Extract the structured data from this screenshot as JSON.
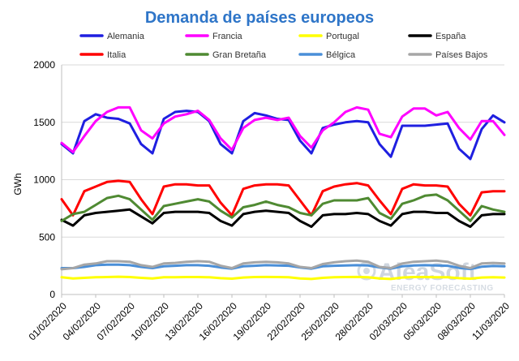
{
  "chart_data": {
    "type": "line",
    "title": "Demanda de países europeos",
    "xlabel": "",
    "ylabel": "GWh",
    "ylim": [
      0,
      2000
    ],
    "yticks": [
      0,
      500,
      1000,
      1500,
      2000
    ],
    "grid": "horizontal",
    "legend_position": "top",
    "x": [
      "01/02/2020",
      "02/02/2020",
      "03/02/2020",
      "04/02/2020",
      "05/02/2020",
      "06/02/2020",
      "07/02/2020",
      "08/02/2020",
      "09/02/2020",
      "10/02/2020",
      "11/02/2020",
      "12/02/2020",
      "13/02/2020",
      "14/02/2020",
      "15/02/2020",
      "16/02/2020",
      "17/02/2020",
      "18/02/2020",
      "19/02/2020",
      "20/02/2020",
      "21/02/2020",
      "22/02/2020",
      "23/02/2020",
      "24/02/2020",
      "25/02/2020",
      "26/02/2020",
      "27/02/2020",
      "28/02/2020",
      "29/02/2020",
      "01/03/2020",
      "02/03/2020",
      "03/03/2020",
      "04/03/2020",
      "05/03/2020",
      "06/03/2020",
      "07/03/2020",
      "08/03/2020",
      "09/03/2020",
      "10/03/2020",
      "11/03/2020"
    ],
    "xtick_labels": [
      "01/02/2020",
      "04/02/2020",
      "07/02/2020",
      "10/02/2020",
      "13/02/2020",
      "16/02/2020",
      "19/02/2020",
      "22/02/2020",
      "25/02/2020",
      "28/02/2020",
      "02/03/2020",
      "05/03/2020",
      "08/03/2020",
      "11/03/2020"
    ],
    "series": [
      {
        "name": "Alemania",
        "color": "#1f1fe0",
        "values": [
          1310,
          1230,
          1510,
          1570,
          1540,
          1530,
          1490,
          1310,
          1230,
          1530,
          1590,
          1600,
          1590,
          1510,
          1310,
          1230,
          1510,
          1580,
          1560,
          1530,
          1520,
          1340,
          1230,
          1450,
          1480,
          1500,
          1510,
          1500,
          1310,
          1200,
          1470,
          1470,
          1470,
          1480,
          1490,
          1270,
          1180,
          1440,
          1560,
          1500
        ]
      },
      {
        "name": "Francia",
        "color": "#ff00ff",
        "values": [
          1320,
          1240,
          1380,
          1510,
          1590,
          1630,
          1630,
          1430,
          1360,
          1490,
          1550,
          1570,
          1600,
          1520,
          1360,
          1260,
          1450,
          1520,
          1540,
          1520,
          1540,
          1380,
          1280,
          1430,
          1500,
          1590,
          1630,
          1610,
          1400,
          1370,
          1550,
          1620,
          1620,
          1560,
          1590,
          1450,
          1350,
          1510,
          1510,
          1390
        ]
      },
      {
        "name": "Portugal",
        "color": "#ffff00",
        "values": [
          150,
          140,
          145,
          150,
          152,
          155,
          152,
          145,
          140,
          150,
          150,
          152,
          152,
          150,
          142,
          138,
          148,
          152,
          153,
          152,
          150,
          140,
          135,
          145,
          150,
          152,
          153,
          150,
          140,
          135,
          148,
          152,
          152,
          150,
          150,
          142,
          138,
          148,
          150,
          148
        ]
      },
      {
        "name": "España",
        "color": "#000000",
        "values": [
          650,
          600,
          690,
          710,
          720,
          730,
          740,
          680,
          620,
          710,
          720,
          720,
          720,
          710,
          640,
          600,
          700,
          720,
          730,
          720,
          710,
          640,
          590,
          690,
          700,
          700,
          710,
          700,
          640,
          600,
          700,
          720,
          720,
          710,
          710,
          640,
          590,
          690,
          700,
          700
        ]
      },
      {
        "name": "Italia",
        "color": "#ff0000",
        "values": [
          830,
          690,
          900,
          940,
          980,
          990,
          980,
          830,
          700,
          940,
          960,
          960,
          950,
          950,
          800,
          690,
          920,
          950,
          960,
          960,
          950,
          820,
          690,
          900,
          940,
          960,
          970,
          950,
          820,
          700,
          920,
          960,
          950,
          950,
          940,
          790,
          690,
          890,
          900,
          900
        ]
      },
      {
        "name": "Gran Bretaña",
        "color": "#4f8a32",
        "values": [
          640,
          700,
          720,
          780,
          840,
          860,
          830,
          740,
          650,
          770,
          790,
          810,
          830,
          810,
          730,
          670,
          760,
          780,
          810,
          780,
          760,
          710,
          690,
          790,
          820,
          820,
          820,
          840,
          710,
          660,
          790,
          820,
          860,
          870,
          820,
          730,
          640,
          770,
          740,
          720
        ]
      },
      {
        "name": "Bélgica",
        "color": "#4a8fd8",
        "values": [
          230,
          230,
          240,
          255,
          260,
          260,
          255,
          240,
          230,
          245,
          250,
          255,
          255,
          250,
          235,
          225,
          245,
          250,
          255,
          252,
          250,
          235,
          225,
          245,
          250,
          252,
          255,
          252,
          235,
          225,
          245,
          252,
          255,
          252,
          250,
          232,
          222,
          242,
          248,
          245
        ]
      },
      {
        "name": "Países Bajos",
        "color": "#a6a6a6",
        "values": [
          220,
          230,
          260,
          270,
          290,
          290,
          285,
          255,
          240,
          270,
          275,
          285,
          290,
          285,
          250,
          230,
          270,
          280,
          285,
          280,
          270,
          240,
          230,
          265,
          280,
          290,
          295,
          285,
          240,
          230,
          270,
          285,
          290,
          295,
          285,
          250,
          230,
          270,
          275,
          270
        ]
      }
    ],
    "watermark": {
      "brand": "AleaSoft",
      "tagline": "ENERGY FORECASTING"
    }
  }
}
